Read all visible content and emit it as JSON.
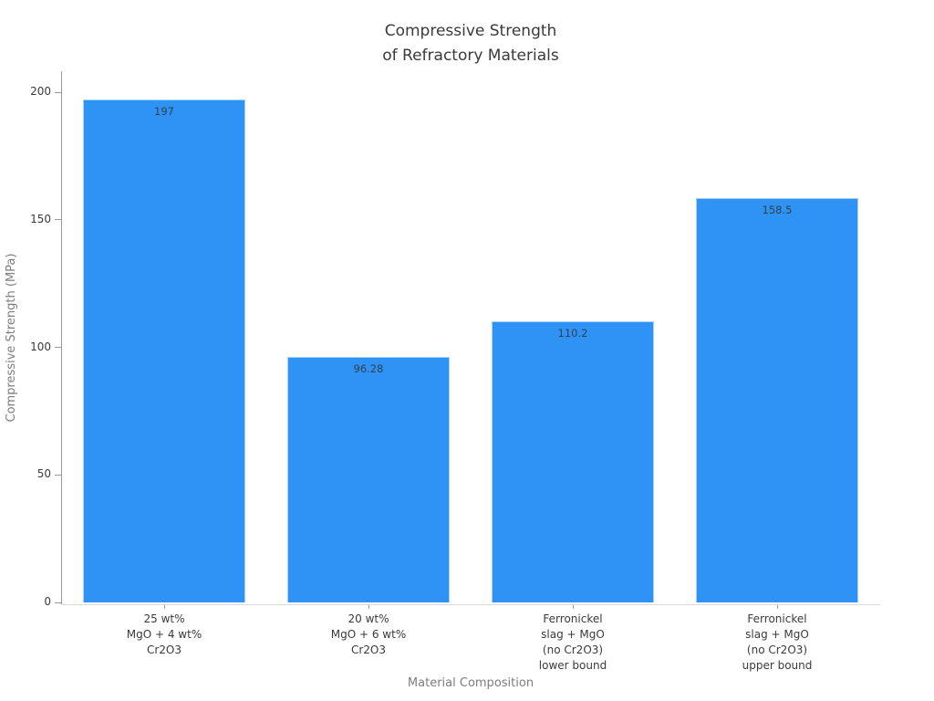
{
  "chart_data": {
    "type": "bar",
    "title": "Compressive Strength\nof Refractory Materials",
    "xlabel": "Material Composition",
    "ylabel": "Compressive Strength (MPa)",
    "categories": [
      "25 wt%\nMgO + 4 wt%\nCr2O3",
      "20 wt%\nMgO + 6 wt%\nCr2O3",
      "Ferronickel\nslag + MgO\n(no Cr2O3)\nlower bound",
      "Ferronickel\nslag + MgO\n(no Cr2O3)\nupper bound"
    ],
    "values": [
      197,
      96.28,
      110.2,
      158.5
    ],
    "value_labels": [
      "197",
      "96.28",
      "110.2",
      "158.5"
    ],
    "ylim": [
      0,
      200
    ],
    "yticks": [
      0,
      50,
      100,
      150,
      200
    ],
    "grid": false,
    "legend": null,
    "colors": {
      "bar_fill": "#2e93f5",
      "bar_edge": "#a9cff3",
      "value_label": "#31414f",
      "tick_label": "#3a3a3a",
      "axis_label": "#7d7d7d",
      "y_spine": "#9a9a9a",
      "x_spine": "#d9d9d9",
      "background": "#ffffff"
    }
  }
}
